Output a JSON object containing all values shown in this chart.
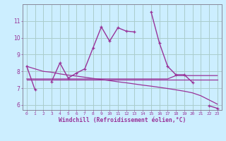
{
  "xlabel": "Windchill (Refroidissement éolien,°C)",
  "bg_color": "#cceeff",
  "line_color": "#993399",
  "grid_color": "#aacccc",
  "hours": [
    0,
    1,
    2,
    3,
    4,
    5,
    6,
    7,
    8,
    9,
    10,
    11,
    12,
    13,
    14,
    15,
    16,
    17,
    18,
    19,
    20,
    21,
    22,
    23
  ],
  "series_main": [
    8.3,
    6.9,
    null,
    7.4,
    8.5,
    7.6,
    7.9,
    8.15,
    9.4,
    10.65,
    9.8,
    10.6,
    10.4,
    10.35,
    null,
    11.55,
    9.7,
    8.3,
    7.8,
    7.8,
    7.35,
    null,
    5.95,
    5.8
  ],
  "series_flat_upper": [
    7.55,
    7.55,
    7.55,
    7.55,
    7.55,
    7.55,
    7.55,
    7.55,
    7.55,
    7.55,
    7.55,
    7.55,
    7.55,
    7.55,
    7.55,
    7.55,
    7.55,
    7.55,
    7.75,
    7.75,
    7.75,
    7.75,
    7.75,
    7.75
  ],
  "series_flat_lower": [
    7.5,
    7.5,
    7.5,
    7.5,
    7.5,
    7.5,
    7.5,
    7.5,
    7.5,
    7.5,
    7.5,
    7.5,
    7.5,
    7.5,
    7.5,
    7.5,
    7.5,
    7.5,
    7.5,
    7.5,
    7.5,
    7.5,
    7.5,
    7.5
  ],
  "series_decline": [
    8.3,
    8.15,
    8.0,
    7.95,
    7.85,
    7.78,
    7.72,
    7.65,
    7.58,
    7.52,
    7.45,
    7.38,
    7.32,
    7.25,
    7.18,
    7.12,
    7.05,
    6.98,
    6.9,
    6.82,
    6.72,
    6.55,
    6.3,
    6.05
  ],
  "ylim": [
    5.7,
    12.0
  ],
  "yticks": [
    6,
    7,
    8,
    9,
    10,
    11
  ],
  "xticks": [
    0,
    1,
    2,
    3,
    4,
    5,
    6,
    7,
    8,
    9,
    10,
    11,
    12,
    13,
    14,
    15,
    16,
    17,
    18,
    19,
    20,
    21,
    22,
    23
  ]
}
